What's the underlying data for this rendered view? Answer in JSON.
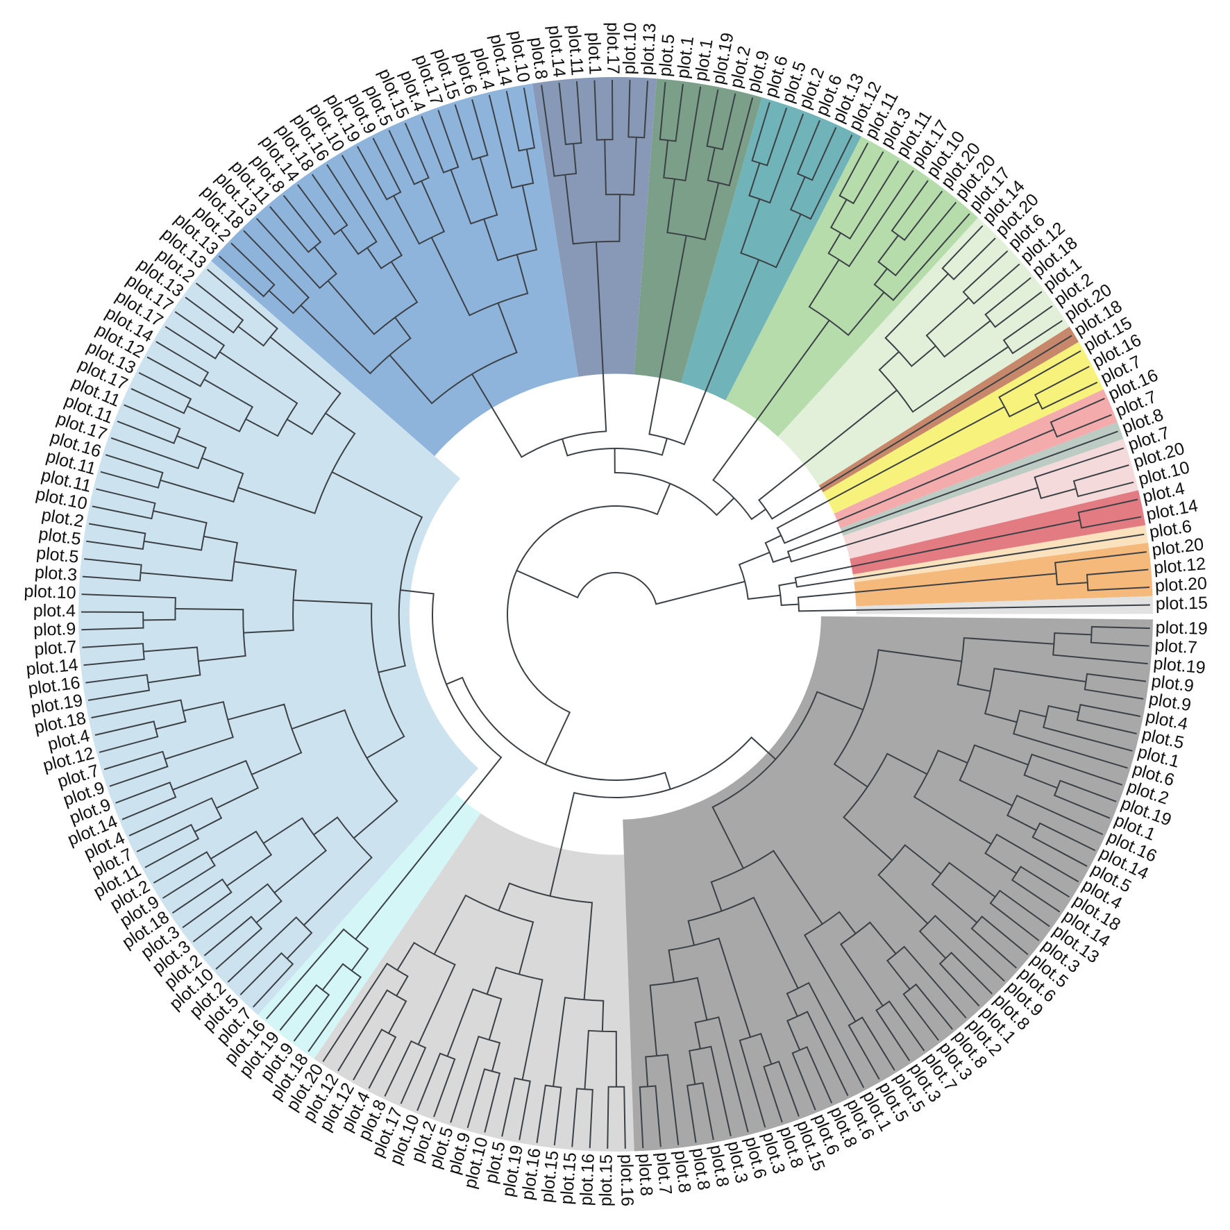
{
  "clades": [
    {
      "color": "#e2e2e2",
      "leaves": [
        "plot.15"
      ]
    },
    {
      "color": "#f6b97c",
      "leaves": [
        "plot.20",
        "plot.12",
        "plot.20"
      ]
    },
    {
      "color": "#fbe2bf",
      "leaves": [
        "plot.6"
      ]
    },
    {
      "color": "#e37c82",
      "leaves": [
        "plot.14",
        "plot.4"
      ]
    },
    {
      "color": "#f4dada",
      "leaves": [
        "plot.10",
        "plot.20",
        "plot.7"
      ]
    },
    {
      "color": "#bccbc3",
      "leaves": [
        "plot.8"
      ]
    },
    {
      "color": "#f4abab",
      "leaves": [
        "plot.7",
        "plot.16"
      ]
    },
    {
      "color": "#f7f27c",
      "leaves": [
        "plot.7",
        "plot.16",
        "plot.15"
      ]
    },
    {
      "color": "#c6876a",
      "leaves": [
        "plot.18"
      ]
    },
    {
      "color": "#e2f0da",
      "leaves": [
        "plot.20",
        "plot.2",
        "plot.1",
        "plot.18",
        "plot.12",
        "plot.6",
        "plot.20",
        "plot.14"
      ]
    },
    {
      "color": "#b6dcac",
      "leaves": [
        "plot.17",
        "plot.20",
        "plot.20",
        "plot.10",
        "plot.17",
        "plot.11",
        "plot.3",
        "plot.11"
      ]
    },
    {
      "color": "#70b4b9",
      "leaves": [
        "plot.12",
        "plot.13",
        "plot.6",
        "plot.2",
        "plot.5",
        "plot.6"
      ]
    },
    {
      "color": "#7b9f88",
      "leaves": [
        "plot.9",
        "plot.2",
        "plot.19",
        "plot.1",
        "plot.1",
        "plot.5"
      ]
    },
    {
      "color": "#8899b8",
      "leaves": [
        "plot.13",
        "plot.10",
        "plot.17",
        "plot.1",
        "plot.11",
        "plot.14",
        "plot.8"
      ]
    },
    {
      "color": "#8fb4dc",
      "leaves": [
        "plot.10",
        "plot.14",
        "plot.4",
        "plot.6",
        "plot.15",
        "plot.17",
        "plot.4",
        "plot.15",
        "plot.5",
        "plot.9",
        "plot.19",
        "plot.10",
        "plot.16",
        "plot.18",
        "plot.14",
        "plot.8",
        "plot.11",
        "plot.13",
        "plot.18",
        "plot.2",
        "plot.13"
      ]
    },
    {
      "color": "#cde2ef",
      "leaves": [
        "plot.13",
        "plot.2",
        "plot.13",
        "plot.17",
        "plot.17",
        "plot.14",
        "plot.12",
        "plot.13",
        "plot.17",
        "plot.11",
        "plot.11",
        "plot.17",
        "plot.16",
        "plot.11",
        "plot.11",
        "plot.10",
        "plot.2",
        "plot.5",
        "plot.5",
        "plot.3",
        "plot.10",
        "plot.4",
        "plot.9",
        "plot.7",
        "plot.14",
        "plot.16",
        "plot.19",
        "plot.18",
        "plot.4",
        "plot.12",
        "plot.7",
        "plot.9",
        "plot.9",
        "plot.14",
        "plot.4",
        "plot.7",
        "plot.11",
        "plot.2",
        "plot.9",
        "plot.18",
        "plot.3",
        "plot.3",
        "plot.2",
        "plot.10",
        "plot.2",
        "plot.5",
        "plot.7"
      ]
    },
    {
      "color": "#d4f6f6",
      "leaves": [
        "plot.16",
        "plot.19",
        "plot.9",
        "plot.18"
      ]
    },
    {
      "color": "#d9d9d9",
      "leaves": [
        "plot.20",
        "plot.12",
        "plot.12",
        "plot.4",
        "plot.8",
        "plot.17",
        "plot.10",
        "plot.2",
        "plot.5",
        "plot.9",
        "plot.10",
        "plot.5",
        "plot.19",
        "plot.16",
        "plot.15",
        "plot.15",
        "plot.16",
        "plot.15",
        "plot.16"
      ]
    },
    {
      "color": "#a8a8a8",
      "leaves": [
        "plot.8",
        "plot.7",
        "plot.8",
        "plot.8",
        "plot.8",
        "plot.3",
        "plot.6",
        "plot.3",
        "plot.8",
        "plot.15",
        "plot.6",
        "plot.8",
        "plot.6",
        "plot.1",
        "plot.5",
        "plot.5",
        "plot.3",
        "plot.7",
        "plot.3",
        "plot.8",
        "plot.2",
        "plot.1",
        "plot.8",
        "plot.9",
        "plot.6",
        "plot.5",
        "plot.3",
        "plot.13",
        "plot.14",
        "plot.18",
        "plot.4",
        "plot.5",
        "plot.14",
        "plot.16",
        "plot.1",
        "plot.19",
        "plot.2",
        "plot.6",
        "plot.1",
        "plot.5",
        "plot.4",
        "plot.9",
        "plot.9",
        "plot.19",
        "plot.7",
        "plot.19"
      ]
    }
  ]
}
